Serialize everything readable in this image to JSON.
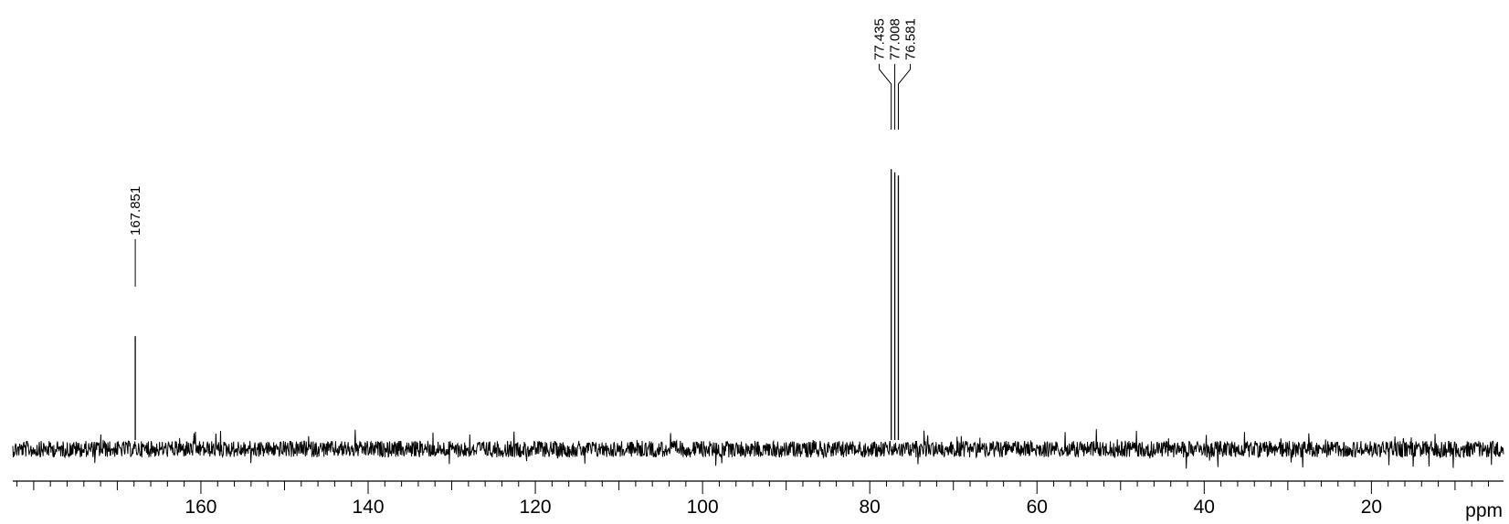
{
  "chart_data": {
    "type": "line",
    "title": "",
    "xlabel": "ppm",
    "ylabel": "",
    "x_axis_reversed": true,
    "xlim": [
      182.5,
      4.2
    ],
    "major_ticks": [
      160,
      140,
      120,
      100,
      80,
      60,
      40,
      20
    ],
    "minor_tick_step": 2,
    "tick_labels": [
      "160",
      "140",
      "120",
      "100",
      "80",
      "60",
      "40",
      "20"
    ],
    "grid": false,
    "series": [
      {
        "peaks": [
          {
            "ppm": 167.851,
            "label": "167.851",
            "relative_height": 0.38
          },
          {
            "ppm": 77.435,
            "label": "77.435",
            "relative_height": 0.9
          },
          {
            "ppm": 77.008,
            "label": "77.008",
            "relative_height": 0.89
          },
          {
            "ppm": 76.581,
            "label": "76.581",
            "relative_height": 0.88
          }
        ]
      }
    ],
    "line_color": "#000000"
  }
}
